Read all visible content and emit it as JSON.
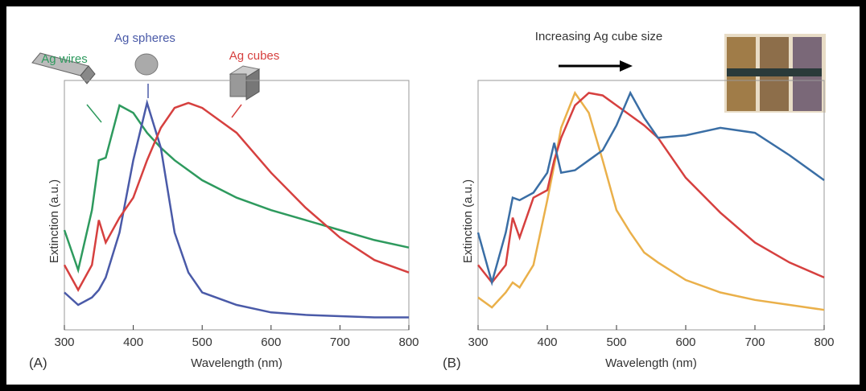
{
  "chart_data": [
    {
      "type": "line",
      "panel_label": "(A)",
      "xlabel": "Wavelength (nm)",
      "ylabel": "Extinction (a.u.)",
      "x": [
        300,
        320,
        340,
        350,
        360,
        380,
        400,
        420,
        440,
        460,
        480,
        500,
        550,
        600,
        650,
        700,
        750,
        800
      ],
      "xlim": [
        300,
        800
      ],
      "xticks": [
        300,
        400,
        500,
        600,
        700,
        800
      ],
      "ylim": [
        0,
        1
      ],
      "series": [
        {
          "name": "Ag wires",
          "color": "#2e9a5e",
          "values": [
            0.4,
            0.24,
            0.48,
            0.68,
            0.69,
            0.9,
            0.87,
            0.79,
            0.73,
            0.68,
            0.64,
            0.6,
            0.53,
            0.48,
            0.44,
            0.4,
            0.36,
            0.33
          ]
        },
        {
          "name": "Ag spheres",
          "color": "#4a5aa8",
          "values": [
            0.15,
            0.1,
            0.13,
            0.16,
            0.21,
            0.39,
            0.68,
            0.91,
            0.73,
            0.39,
            0.23,
            0.15,
            0.1,
            0.07,
            0.06,
            0.055,
            0.05,
            0.05
          ]
        },
        {
          "name": "Ag cubes",
          "color": "#d6403f",
          "values": [
            0.26,
            0.16,
            0.26,
            0.44,
            0.35,
            0.45,
            0.53,
            0.68,
            0.81,
            0.89,
            0.91,
            0.89,
            0.79,
            0.63,
            0.49,
            0.37,
            0.28,
            0.23
          ]
        }
      ]
    },
    {
      "type": "line",
      "panel_label": "(B)",
      "xlabel": "Wavelength (nm)",
      "ylabel": "Extinction (a.u.)",
      "annotation": "Increasing Ag cube size",
      "x": [
        300,
        320,
        340,
        350,
        360,
        380,
        400,
        410,
        420,
        440,
        460,
        480,
        500,
        520,
        540,
        560,
        600,
        650,
        700,
        750,
        800
      ],
      "xlim": [
        300,
        800
      ],
      "xticks": [
        300,
        400,
        500,
        600,
        700,
        800
      ],
      "ylim": [
        0,
        1
      ],
      "series": [
        {
          "color": "#eab04a",
          "values": [
            0.13,
            0.09,
            0.15,
            0.19,
            0.17,
            0.26,
            0.52,
            0.66,
            0.81,
            0.95,
            0.87,
            0.68,
            0.48,
            0.39,
            0.31,
            0.27,
            0.2,
            0.15,
            0.12,
            0.1,
            0.08
          ]
        },
        {
          "color": "#d6403f",
          "values": [
            0.26,
            0.19,
            0.26,
            0.45,
            0.37,
            0.53,
            0.56,
            0.68,
            0.77,
            0.9,
            0.95,
            0.94,
            0.9,
            0.86,
            0.82,
            0.77,
            0.61,
            0.47,
            0.35,
            0.27,
            0.21
          ]
        },
        {
          "color": "#3a6ea5",
          "values": [
            0.39,
            0.19,
            0.39,
            0.53,
            0.52,
            0.55,
            0.63,
            0.75,
            0.63,
            0.64,
            0.68,
            0.72,
            0.82,
            0.95,
            0.85,
            0.77,
            0.78,
            0.81,
            0.79,
            0.7,
            0.6
          ]
        }
      ]
    }
  ]
}
